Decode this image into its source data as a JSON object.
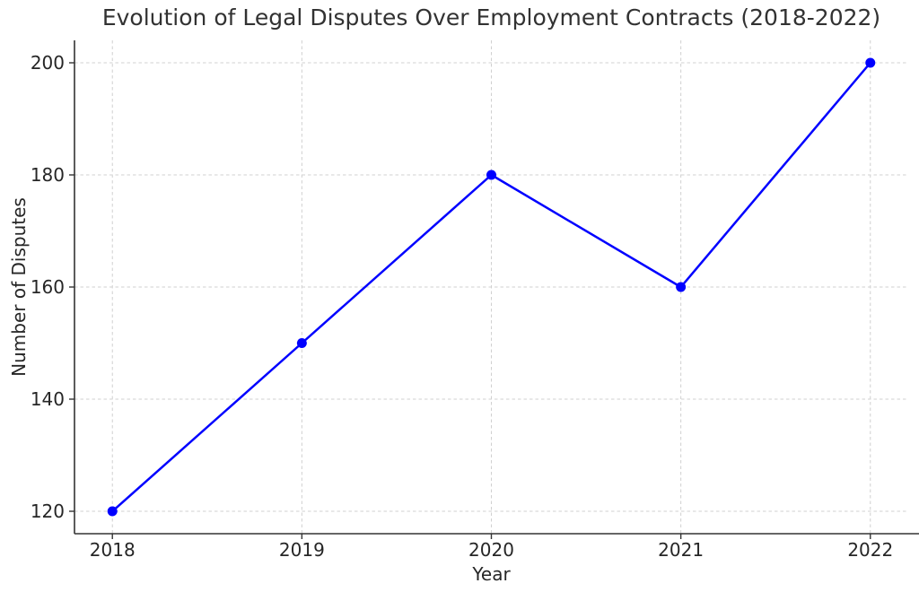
{
  "chart_data": {
    "type": "line",
    "title": "Evolution of Legal Disputes Over Employment Contracts (2018-2022)",
    "xlabel": "Year",
    "ylabel": "Number of Disputes",
    "x": [
      2018,
      2019,
      2020,
      2021,
      2022
    ],
    "values": [
      120,
      150,
      180,
      160,
      200
    ],
    "xtick_labels": [
      "2018",
      "2019",
      "2020",
      "2021",
      "2022"
    ],
    "yticks": [
      120,
      140,
      160,
      180,
      200
    ],
    "ytick_labels": [
      "120",
      "140",
      "160",
      "180",
      "200"
    ],
    "xlim": [
      2017.8,
      2022.2
    ],
    "ylim": [
      116,
      204
    ],
    "grid": "on",
    "grid_linestyle": "dashed",
    "legend": "none",
    "colors": {
      "line": "#0000ff",
      "marker": "#0000ff",
      "grid": "#d0d0d0",
      "spine": "#333333",
      "tick": "#333333",
      "text": "#262626",
      "background": "#ffffff"
    }
  }
}
